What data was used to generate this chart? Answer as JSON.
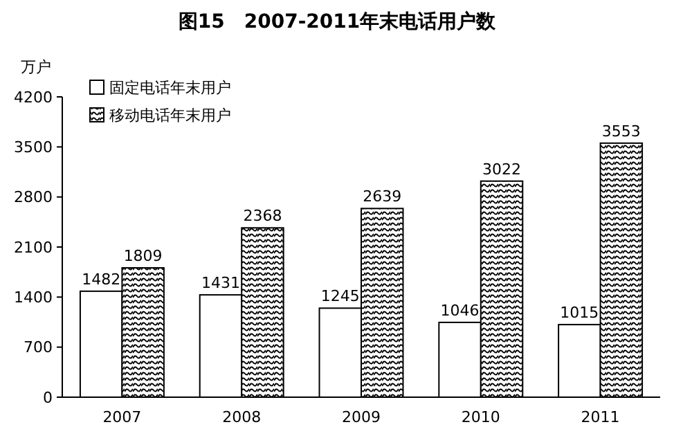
{
  "chart_data": {
    "type": "bar",
    "title": "图15　2007-2011年末电话用户数",
    "ylabel": "万户",
    "categories": [
      "2007",
      "2008",
      "2009",
      "2010",
      "2011"
    ],
    "series": [
      {
        "name": "固定电话年末用户",
        "color": "#ffffff",
        "values": [
          1482,
          1431,
          1245,
          1046,
          1015
        ]
      },
      {
        "name": "移动电话年末用户",
        "color": "#000000",
        "values": [
          1809,
          2368,
          2639,
          3022,
          3553
        ]
      }
    ],
    "ylim": [
      0,
      4200
    ],
    "yticks": [
      0,
      700,
      1400,
      2100,
      2800,
      3500,
      4200
    ],
    "data_labels": true,
    "legend": "top left",
    "grid": false
  }
}
